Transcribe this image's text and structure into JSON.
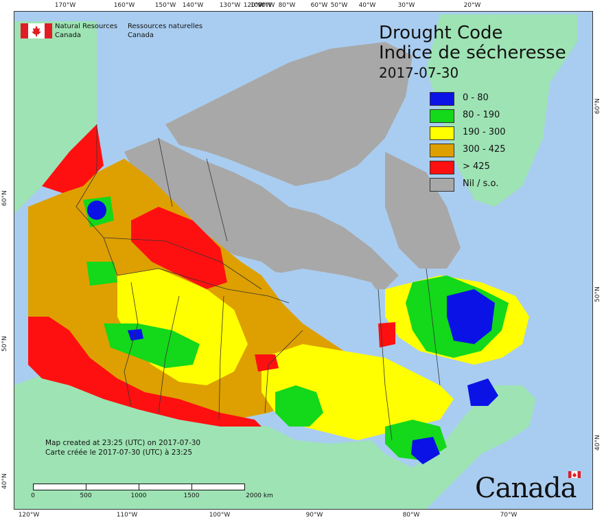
{
  "agency": {
    "name_en_line1": "Natural Resources",
    "name_en_line2": "Canada",
    "name_fr_line1": "Ressources naturelles",
    "name_fr_line2": "Canada"
  },
  "title": {
    "en": "Drought Code",
    "fr": "Indice de sécheresse",
    "date": "2017-07-30"
  },
  "legend": [
    {
      "label": "0 - 80",
      "color": "#0a12e6"
    },
    {
      "label": "80 - 190",
      "color": "#14d81a"
    },
    {
      "label": "190 - 300",
      "color": "#ffff00"
    },
    {
      "label": "300 - 425",
      "color": "#dea000"
    },
    {
      "label": "> 425",
      "color": "#ff1010"
    },
    {
      "label": "Nil / s.o.",
      "color": "#a8a8a8"
    }
  ],
  "credit": {
    "en": "Map created at 23:25 (UTC) on 2017-07-30",
    "fr": "Carte créée le 2017-07-30 (UTC) à 23:25"
  },
  "scale": {
    "labels": [
      "0",
      "500",
      "1000",
      "1500",
      "2000  km"
    ]
  },
  "graticule": {
    "top": [
      "170°W",
      "160°W",
      "150°W",
      "140°W",
      "130°W",
      "120°W",
      "100°W",
      "90°W",
      "80°W",
      "60°W",
      "50°W",
      "40°W",
      "30°W",
      "20°W"
    ],
    "bottom": [
      "120°W",
      "110°W",
      "100°W",
      "90°W",
      "80°W",
      "70°W"
    ],
    "left": [
      "60°N",
      "50°N",
      "40°N"
    ],
    "right": [
      "60°N",
      "50°N",
      "40°N"
    ]
  },
  "colors": {
    "ocean": "#a9cdf0",
    "land_other": "#9ee3b4",
    "border": "#333333"
  },
  "wordmark": "Canada"
}
